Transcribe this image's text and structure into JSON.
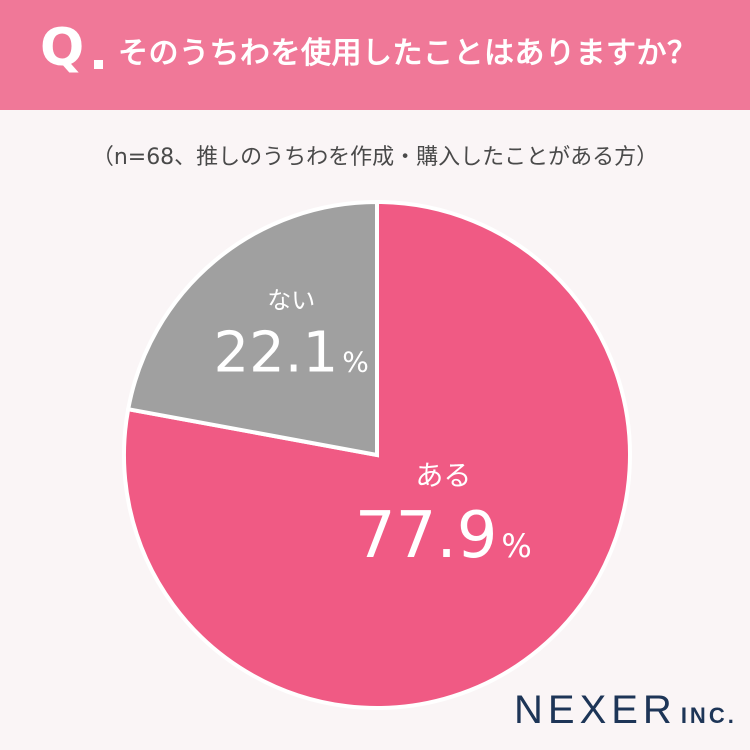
{
  "header": {
    "q_mark": "Q",
    "question": "そのうちわを使用したことはありますか？"
  },
  "subtitle": "（n=68、推しのうちわを作成・購入したことがある方）",
  "chart_data": {
    "type": "pie",
    "categories": [
      "ある",
      "ない"
    ],
    "values": [
      77.9,
      22.1
    ],
    "unit": "%",
    "colors": [
      "#f05a84",
      "#a0a0a0"
    ],
    "start_angle": "12 o'clock, clockwise"
  },
  "logo": {
    "main": "NEXER",
    "inc": "INC."
  }
}
